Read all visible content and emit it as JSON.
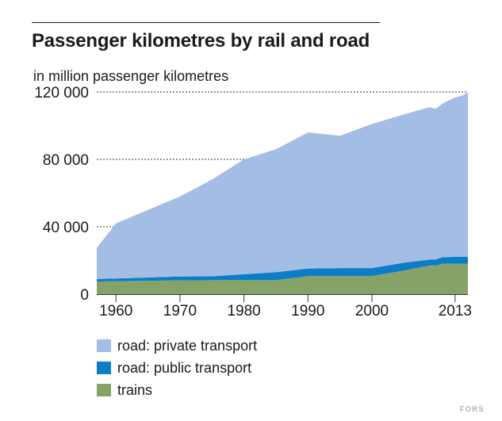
{
  "title": "Passenger kilometres by rail and road",
  "subtitle": "in million passenger kilometres",
  "credit": "FORS",
  "colors": {
    "private": "#a3bde4",
    "public": "#0b7ec7",
    "trains": "#86a267",
    "grid": "#333333",
    "text": "#1a1a1a"
  },
  "chart_data": {
    "type": "area",
    "stacked": true,
    "title": "Passenger kilometres by rail and road",
    "ylabel": "in million passenger kilometres",
    "xlim": [
      1957,
      2015
    ],
    "ylim": [
      0,
      120000
    ],
    "y_ticks": [
      0,
      40000,
      80000,
      120000
    ],
    "y_tick_labels": [
      "0",
      "40 000",
      "80 000",
      "120 000"
    ],
    "x_ticks": [
      1960,
      1970,
      1980,
      1990,
      2000,
      2013
    ],
    "x_tick_labels": [
      "1960",
      "1970",
      "1980",
      "1990",
      "2000",
      "2013"
    ],
    "x": [
      1957,
      1960,
      1970,
      1975,
      1980,
      1985,
      1990,
      1995,
      2000,
      2005,
      2009,
      2010,
      2011,
      2012,
      2013,
      2014,
      2015
    ],
    "series": [
      {
        "name": "trains",
        "values": [
          7500,
          7700,
          8200,
          8300,
          8300,
          8300,
          10700,
          10800,
          10800,
          14000,
          17000,
          17000,
          18000,
          18000,
          18000,
          18000,
          18000
        ]
      },
      {
        "name": "road: public transport",
        "values": [
          1500,
          1600,
          2300,
          2300,
          3500,
          4700,
          4500,
          4700,
          4700,
          4700,
          3500,
          3500,
          4000,
          4000,
          4200,
          4200,
          4200
        ]
      },
      {
        "name": "road: private transport",
        "values": [
          18500,
          32700,
          47500,
          57400,
          68200,
          73000,
          80800,
          78500,
          85500,
          88000,
          90500,
          89500,
          91000,
          93000,
          94500,
          95500,
          97500
        ]
      }
    ],
    "legend": [
      {
        "label": "road: private transport",
        "color_key": "private"
      },
      {
        "label": "road: public transport",
        "color_key": "public"
      },
      {
        "label": "trains",
        "color_key": "trains"
      }
    ],
    "legend_position": "bottom-left",
    "grid": "dotted horizontal"
  }
}
